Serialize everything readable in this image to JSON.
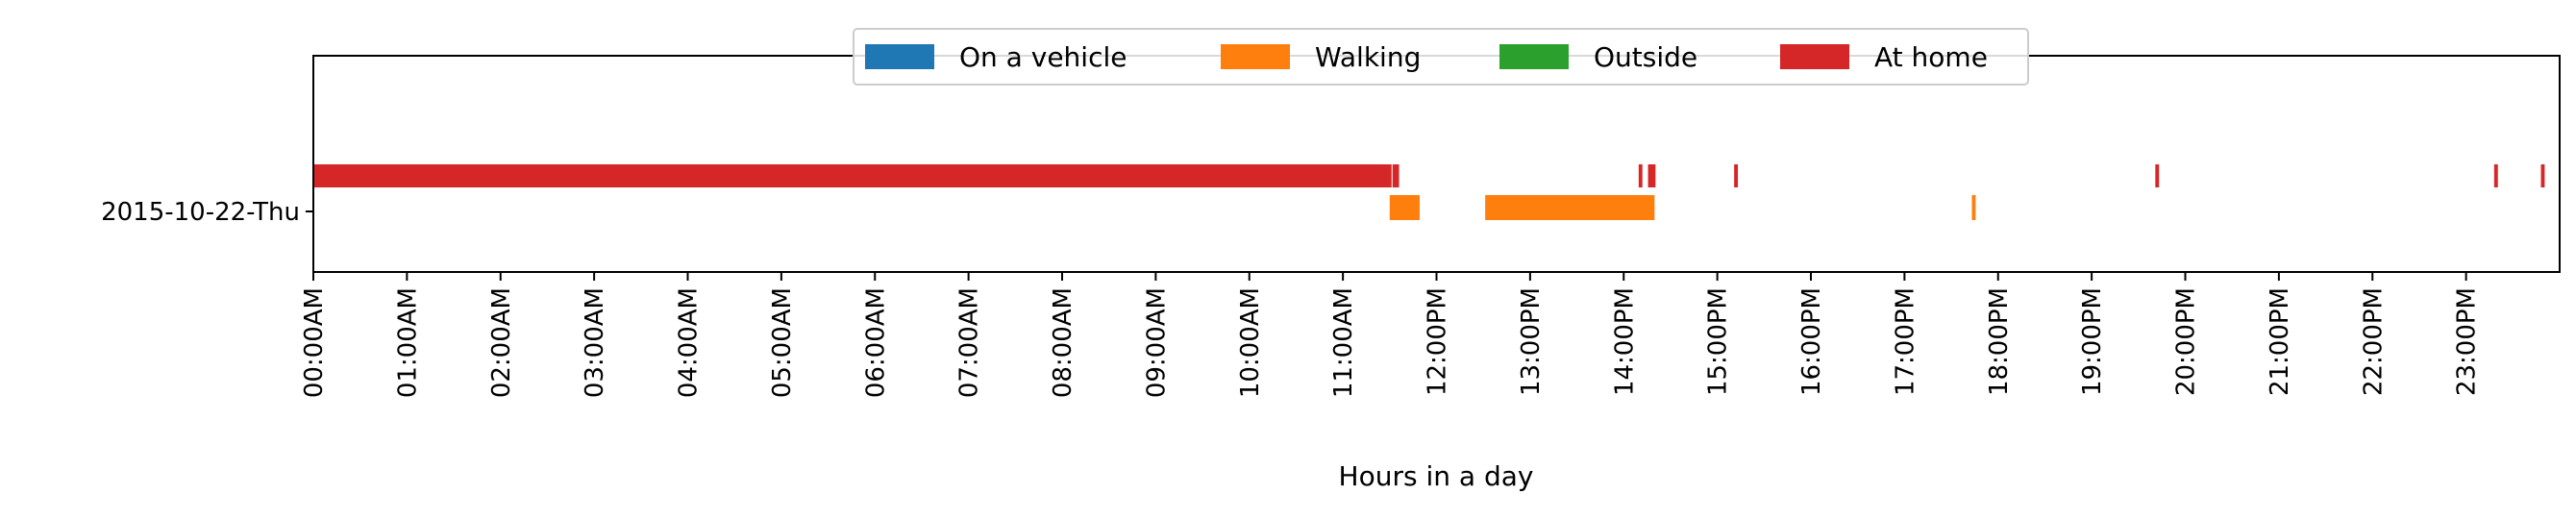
{
  "chart_data": {
    "type": "timeline",
    "xlabel": "Hours in a day",
    "xlim": [
      0,
      24
    ],
    "x_ticks": [
      {
        "value": 0,
        "label": "00:00AM"
      },
      {
        "value": 1,
        "label": "01:00AM"
      },
      {
        "value": 2,
        "label": "02:00AM"
      },
      {
        "value": 3,
        "label": "03:00AM"
      },
      {
        "value": 4,
        "label": "04:00AM"
      },
      {
        "value": 5,
        "label": "05:00AM"
      },
      {
        "value": 6,
        "label": "06:00AM"
      },
      {
        "value": 7,
        "label": "07:00AM"
      },
      {
        "value": 8,
        "label": "08:00AM"
      },
      {
        "value": 9,
        "label": "09:00AM"
      },
      {
        "value": 10,
        "label": "10:00AM"
      },
      {
        "value": 11,
        "label": "11:00AM"
      },
      {
        "value": 12,
        "label": "12:00PM"
      },
      {
        "value": 13,
        "label": "13:00PM"
      },
      {
        "value": 14,
        "label": "14:00PM"
      },
      {
        "value": 15,
        "label": "15:00PM"
      },
      {
        "value": 16,
        "label": "16:00PM"
      },
      {
        "value": 17,
        "label": "17:00PM"
      },
      {
        "value": 18,
        "label": "18:00PM"
      },
      {
        "value": 19,
        "label": "19:00PM"
      },
      {
        "value": 20,
        "label": "20:00PM"
      },
      {
        "value": 21,
        "label": "21:00PM"
      },
      {
        "value": 22,
        "label": "22:00PM"
      },
      {
        "value": 23,
        "label": "23:00PM"
      }
    ],
    "rows": [
      "2015-10-22-Thu"
    ],
    "legend_position": "top-center",
    "series": [
      {
        "name": "On a vehicle",
        "color": "#1f77b4",
        "lane": 0,
        "intervals": []
      },
      {
        "name": "Walking",
        "color": "#ff7f0e",
        "lane": 1,
        "intervals": [
          [
            11.5,
            11.82
          ],
          [
            12.52,
            14.33
          ],
          [
            17.72,
            17.76
          ]
        ]
      },
      {
        "name": "Outside",
        "color": "#2ca02c",
        "lane": 2,
        "intervals": []
      },
      {
        "name": "At home",
        "color": "#d62728",
        "lane": 3,
        "intervals": [
          [
            0,
            11.52
          ],
          [
            11.53,
            11.6
          ],
          [
            14.16,
            14.2
          ],
          [
            14.26,
            14.34
          ],
          [
            15.18,
            15.22
          ],
          [
            19.68,
            19.72
          ],
          [
            23.3,
            23.34
          ],
          [
            23.8,
            23.84
          ]
        ]
      }
    ]
  }
}
